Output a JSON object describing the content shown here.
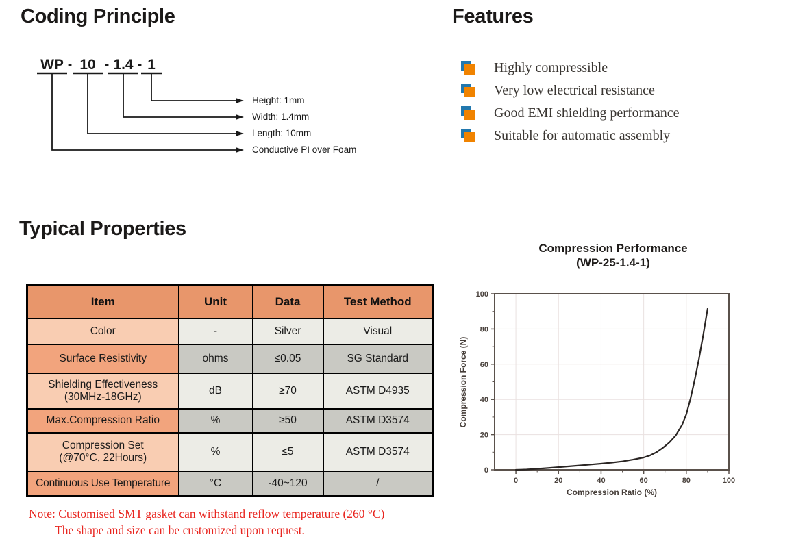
{
  "coding": {
    "title": "Coding Principle",
    "code_segments": [
      "WP",
      "10",
      "1.4",
      "1"
    ],
    "separator": "-",
    "labels": [
      "Height: 1mm",
      "Width: 1.4mm",
      "Length: 10mm",
      "Conductive PI over Foam"
    ]
  },
  "features": {
    "title": "Features",
    "items": [
      "Highly compressible",
      "Very low electrical resistance",
      "Good EMI shielding performance",
      "Suitable for automatic assembly"
    ]
  },
  "properties": {
    "title": "Typical Properties",
    "table": {
      "headers": [
        "Item",
        "Unit",
        "Data",
        "Test Method"
      ],
      "rows": [
        {
          "item": "Color",
          "item2": "",
          "unit": "-",
          "data": "Silver",
          "method": "Visual"
        },
        {
          "item": "Surface Resistivity",
          "item2": "",
          "unit": "ohms",
          "data": "≤0.05",
          "method": "SG Standard"
        },
        {
          "item": "Shielding Effectiveness",
          "item2": "(30MHz-18GHz)",
          "unit": "dB",
          "data": "≥70",
          "method": "ASTM D4935"
        },
        {
          "item": "Max.Compression Ratio",
          "item2": "",
          "unit": "%",
          "data": "≥50",
          "method": "ASTM D3574"
        },
        {
          "item": "Compression Set",
          "item2": "(@70°C, 22Hours)",
          "unit": "%",
          "data": "≤5",
          "method": "ASTM D3574"
        },
        {
          "item": "Continuous Use Temperature",
          "item2": "",
          "unit": "°C",
          "data": "-40~120",
          "method": "/"
        }
      ]
    },
    "note_line1": "Note: Customised SMT gasket can withstand reflow temperature (260 °C)",
    "note_line2": "The shape and size can be customized upon request."
  },
  "chart_data": {
    "type": "line",
    "title": "Compression Performance",
    "subtitle": "(WP-25-1.4-1)",
    "xlabel": "Compression Ratio (%)",
    "ylabel": "Compression Force (N)",
    "xlim": [
      -10,
      100
    ],
    "ylim": [
      0,
      100
    ],
    "x_ticks": [
      0,
      20,
      40,
      60,
      80,
      100
    ],
    "y_ticks": [
      0,
      20,
      40,
      60,
      80,
      100
    ],
    "grid": true,
    "legend": "none",
    "series": [
      {
        "name": "WP-25-1.4-1",
        "points": [
          [
            0,
            0
          ],
          [
            5,
            0.2
          ],
          [
            10,
            0.6
          ],
          [
            15,
            1.0
          ],
          [
            20,
            1.5
          ],
          [
            25,
            2.0
          ],
          [
            30,
            2.5
          ],
          [
            35,
            3.0
          ],
          [
            40,
            3.5
          ],
          [
            45,
            4.1
          ],
          [
            50,
            4.8
          ],
          [
            55,
            5.8
          ],
          [
            60,
            7.0
          ],
          [
            63,
            8.2
          ],
          [
            66,
            10.0
          ],
          [
            69,
            12.5
          ],
          [
            72,
            15.5
          ],
          [
            75,
            19.5
          ],
          [
            78,
            25.5
          ],
          [
            80,
            31.5
          ],
          [
            82,
            40.5
          ],
          [
            84,
            51.5
          ],
          [
            86,
            63.5
          ],
          [
            88,
            77.0
          ],
          [
            90,
            91.5
          ]
        ]
      }
    ]
  },
  "colors": {
    "heading": "#1B1918",
    "header_bg": "#E8966B",
    "item_light": "#F9CDB2",
    "item_dark": "#F2A47D",
    "data_light": "#ECECE6",
    "data_dark": "#C9C9C3",
    "bullet_orange": "#F08300",
    "bullet_blue": "#2278AE",
    "note_red": "#E8251F",
    "chart_frame": "#5A514B",
    "chart_grid": "#EAE1E0",
    "chart_line": "#2A2523"
  }
}
